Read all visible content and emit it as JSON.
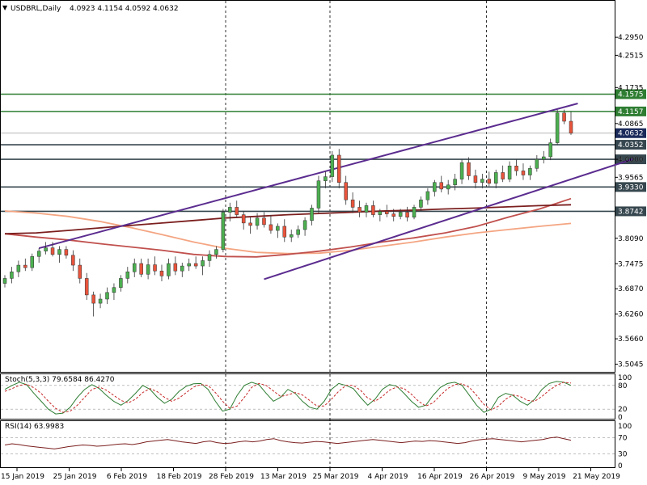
{
  "chart_data": {
    "type": "candlestick",
    "symbol": "USDBRL",
    "timeframe": "Daily",
    "header": {
      "title": "USDBRL,Daily",
      "ohlc_text": "4.0923 4.1154 4.0592 4.0632"
    },
    "price_axis": {
      "range": [
        3.49,
        4.35
      ],
      "ticks": [
        "4.2950",
        "4.2515",
        "4.1735",
        "4.0865",
        "4.0000",
        "3.9565",
        "3.8090",
        "3.7475",
        "3.6870",
        "3.6260",
        "3.5660",
        "3.5045"
      ],
      "tick_values": [
        4.295,
        4.2515,
        4.1735,
        4.0865,
        4.0,
        3.9565,
        3.809,
        3.7475,
        3.687,
        3.626,
        3.566,
        3.5045
      ]
    },
    "date_axis": {
      "labels": [
        "15 Jan 2019",
        "25 Jan 2019",
        "6 Feb 2019",
        "18 Feb 2019",
        "28 Feb 2019",
        "13 Mar 2019",
        "25 Mar 2019",
        "4 Apr 2019",
        "16 Apr 2019",
        "26 Apr 2019",
        "9 May 2019",
        "21 May 2019"
      ]
    },
    "horizontal_levels": [
      {
        "value": 4.1575,
        "label": "4.1575",
        "color": "#2e7d32"
      },
      {
        "value": 4.1157,
        "label": "4.1157",
        "color": "#2e7d32"
      },
      {
        "value": 4.0352,
        "label": "4.0352",
        "color": "#37474f"
      },
      {
        "value": 4.0,
        "label": "4.0000",
        "color": "#37474f"
      },
      {
        "value": 3.933,
        "label": "3.9330",
        "color": "#37474f"
      },
      {
        "value": 3.8742,
        "label": "3.8742",
        "color": "#37474f"
      }
    ],
    "current_price": {
      "value": 4.0632,
      "label": "4.0632"
    },
    "candles": [
      [
        3.7,
        3.72,
        3.69,
        3.712
      ],
      [
        3.712,
        3.74,
        3.7,
        3.728
      ],
      [
        3.728,
        3.755,
        3.715,
        3.744
      ],
      [
        3.744,
        3.76,
        3.73,
        3.738
      ],
      [
        3.738,
        3.772,
        3.73,
        3.765
      ],
      [
        3.765,
        3.785,
        3.75,
        3.778
      ],
      [
        3.778,
        3.8,
        3.77,
        3.786
      ],
      [
        3.786,
        3.8,
        3.765,
        3.77
      ],
      [
        3.77,
        3.79,
        3.75,
        3.782
      ],
      [
        3.782,
        3.79,
        3.76,
        3.768
      ],
      [
        3.768,
        3.78,
        3.73,
        3.744
      ],
      [
        3.744,
        3.76,
        3.7,
        3.712
      ],
      [
        3.712,
        3.725,
        3.66,
        3.672
      ],
      [
        3.672,
        3.68,
        3.62,
        3.652
      ],
      [
        3.652,
        3.675,
        3.64,
        3.662
      ],
      [
        3.662,
        3.69,
        3.65,
        3.678
      ],
      [
        3.678,
        3.7,
        3.66,
        3.69
      ],
      [
        3.69,
        3.72,
        3.68,
        3.712
      ],
      [
        3.712,
        3.74,
        3.7,
        3.728
      ],
      [
        3.728,
        3.76,
        3.715,
        3.748
      ],
      [
        3.748,
        3.76,
        3.715,
        3.722
      ],
      [
        3.722,
        3.76,
        3.71,
        3.745
      ],
      [
        3.745,
        3.765,
        3.72,
        3.73
      ],
      [
        3.73,
        3.745,
        3.705,
        3.718
      ],
      [
        3.718,
        3.76,
        3.71,
        3.748
      ],
      [
        3.748,
        3.765,
        3.72,
        3.73
      ],
      [
        3.73,
        3.75,
        3.715,
        3.742
      ],
      [
        3.742,
        3.76,
        3.73,
        3.748
      ],
      [
        3.748,
        3.765,
        3.735,
        3.742
      ],
      [
        3.742,
        3.765,
        3.72,
        3.755
      ],
      [
        3.755,
        3.78,
        3.74,
        3.77
      ],
      [
        3.77,
        3.79,
        3.76,
        3.782
      ],
      [
        3.782,
        3.88,
        3.775,
        3.872
      ],
      [
        3.872,
        3.895,
        3.85,
        3.884
      ],
      [
        3.884,
        3.9,
        3.86,
        3.866
      ],
      [
        3.866,
        3.875,
        3.83,
        3.846
      ],
      [
        3.846,
        3.86,
        3.82,
        3.84
      ],
      [
        3.84,
        3.87,
        3.83,
        3.858
      ],
      [
        3.858,
        3.872,
        3.835,
        3.842
      ],
      [
        3.842,
        3.865,
        3.82,
        3.828
      ],
      [
        3.828,
        3.845,
        3.81,
        3.838
      ],
      [
        3.838,
        3.855,
        3.8,
        3.812
      ],
      [
        3.812,
        3.83,
        3.8,
        3.818
      ],
      [
        3.818,
        3.84,
        3.81,
        3.83
      ],
      [
        3.83,
        3.86,
        3.815,
        3.852
      ],
      [
        3.852,
        3.89,
        3.84,
        3.882
      ],
      [
        3.882,
        3.96,
        3.87,
        3.948
      ],
      [
        3.948,
        3.97,
        3.93,
        3.958
      ],
      [
        3.958,
        4.02,
        3.945,
        4.01
      ],
      [
        4.01,
        4.025,
        3.93,
        3.944
      ],
      [
        3.944,
        3.96,
        3.89,
        3.902
      ],
      [
        3.902,
        3.92,
        3.87,
        3.884
      ],
      [
        3.884,
        3.9,
        3.86,
        3.872
      ],
      [
        3.872,
        3.895,
        3.86,
        3.888
      ],
      [
        3.888,
        3.9,
        3.86,
        3.866
      ],
      [
        3.866,
        3.88,
        3.85,
        3.874
      ],
      [
        3.874,
        3.89,
        3.86,
        3.868
      ],
      [
        3.868,
        3.88,
        3.85,
        3.862
      ],
      [
        3.862,
        3.88,
        3.855,
        3.872
      ],
      [
        3.872,
        3.885,
        3.85,
        3.86
      ],
      [
        3.86,
        3.89,
        3.855,
        3.884
      ],
      [
        3.884,
        3.91,
        3.875,
        3.902
      ],
      [
        3.902,
        3.93,
        3.89,
        3.922
      ],
      [
        3.922,
        3.95,
        3.91,
        3.944
      ],
      [
        3.944,
        3.96,
        3.92,
        3.928
      ],
      [
        3.928,
        3.95,
        3.915,
        3.938
      ],
      [
        3.938,
        3.965,
        3.925,
        3.952
      ],
      [
        3.952,
        4.0,
        3.94,
        3.992
      ],
      [
        3.992,
        4.005,
        3.95,
        3.96
      ],
      [
        3.96,
        3.975,
        3.93,
        3.944
      ],
      [
        3.944,
        3.965,
        3.93,
        3.952
      ],
      [
        3.952,
        3.97,
        3.935,
        3.942
      ],
      [
        3.942,
        3.975,
        3.93,
        3.968
      ],
      [
        3.968,
        3.985,
        3.945,
        3.952
      ],
      [
        3.952,
        3.995,
        3.945,
        3.984
      ],
      [
        3.984,
        4.0,
        3.96,
        3.972
      ],
      [
        3.972,
        3.99,
        3.95,
        3.962
      ],
      [
        3.962,
        3.985,
        3.95,
        3.978
      ],
      [
        3.978,
        4.01,
        3.97,
        4.0
      ],
      [
        4.0,
        4.02,
        3.99,
        4.006
      ],
      [
        4.006,
        4.05,
        3.998,
        4.04
      ],
      [
        4.04,
        4.12,
        4.035,
        4.112
      ],
      [
        4.112,
        4.12,
        4.085,
        4.092
      ],
      [
        4.092,
        4.115,
        4.059,
        4.063
      ]
    ],
    "moving_averages": [
      {
        "color": "#f4a582",
        "values": [
          3.875,
          3.87,
          3.862,
          3.85,
          3.835,
          3.818,
          3.8,
          3.785,
          3.775,
          3.772,
          3.773,
          3.78,
          3.79,
          3.8,
          3.812,
          3.822,
          3.83,
          3.838,
          3.845
        ]
      },
      {
        "color": "#c0504d",
        "values": [
          3.82,
          3.812,
          3.805,
          3.796,
          3.788,
          3.78,
          3.77,
          3.765,
          3.764,
          3.77,
          3.778,
          3.788,
          3.8,
          3.81,
          3.822,
          3.838,
          3.86,
          3.88,
          3.905
        ]
      },
      {
        "color": "#7b1e1e",
        "values": [
          3.82,
          3.822,
          3.828,
          3.834,
          3.84,
          3.846,
          3.852,
          3.858,
          3.862,
          3.866,
          3.869,
          3.872,
          3.875,
          3.877,
          3.88,
          3.882,
          3.885,
          3.888,
          3.89
        ]
      }
    ],
    "trendlines": [
      {
        "from": [
          5,
          3.785
        ],
        "to": [
          84,
          4.135
        ],
        "color": "#5b2c8f"
      },
      {
        "from": [
          38,
          3.71
        ],
        "to": [
          92,
          4.0
        ],
        "color": "#5b2c8f"
      }
    ],
    "vertical_separators_at_label": [
      "28 Feb 2019",
      "25 Mar 2019",
      "26 Apr 2019"
    ],
    "stochastic": {
      "label": "Stoch(5,3,3) 79.6584 86.4270",
      "levels": [
        "100",
        "80",
        "20",
        "0"
      ],
      "main": [
        70,
        80,
        88,
        82,
        60,
        40,
        20,
        8,
        10,
        25,
        50,
        70,
        82,
        72,
        55,
        40,
        30,
        42,
        60,
        80,
        70,
        50,
        35,
        45,
        65,
        78,
        84,
        85,
        70,
        40,
        15,
        20,
        55,
        80,
        88,
        82,
        60,
        40,
        50,
        70,
        60,
        40,
        25,
        20,
        40,
        70,
        85,
        80,
        72,
        50,
        30,
        45,
        70,
        82,
        78,
        60,
        40,
        25,
        30,
        55,
        75,
        85,
        88,
        80,
        55,
        30,
        12,
        20,
        50,
        60,
        55,
        40,
        30,
        45,
        70,
        85,
        90,
        88,
        80
      ],
      "signal": [
        65,
        72,
        80,
        83,
        74,
        60,
        40,
        22,
        12,
        15,
        30,
        50,
        70,
        76,
        68,
        55,
        42,
        36,
        45,
        62,
        72,
        64,
        50,
        40,
        48,
        62,
        76,
        82,
        80,
        62,
        40,
        22,
        28,
        50,
        75,
        85,
        80,
        66,
        52,
        56,
        62,
        56,
        42,
        28,
        28,
        45,
        65,
        80,
        80,
        68,
        48,
        40,
        52,
        68,
        76,
        72,
        58,
        40,
        28,
        36,
        55,
        72,
        82,
        84,
        75,
        55,
        32,
        18,
        28,
        45,
        56,
        52,
        42,
        40,
        52,
        68,
        80,
        88,
        86
      ]
    },
    "rsi": {
      "label": "RSI(14) 63.9983",
      "levels": [
        "100",
        "70",
        "30",
        "0"
      ],
      "values": [
        52,
        55,
        53,
        50,
        48,
        46,
        44,
        42,
        45,
        48,
        50,
        52,
        51,
        49,
        50,
        52,
        54,
        55,
        53,
        56,
        60,
        62,
        64,
        66,
        63,
        60,
        58,
        56,
        60,
        62,
        58,
        56,
        57,
        60,
        62,
        60,
        62,
        66,
        68,
        63,
        60,
        58,
        57,
        59,
        61,
        60,
        58,
        56,
        58,
        60,
        62,
        64,
        66,
        64,
        62,
        60,
        58,
        60,
        62,
        61,
        63,
        62,
        60,
        58,
        56,
        58,
        62,
        65,
        67,
        68,
        66,
        64,
        62,
        60,
        62,
        64,
        66,
        70,
        72,
        68,
        64
      ]
    },
    "colors": {
      "bull": "#4caf50",
      "bear": "#e8543c",
      "grid": "#000000",
      "level_green": "#2e7d32",
      "level_dark": "#37474f"
    }
  }
}
